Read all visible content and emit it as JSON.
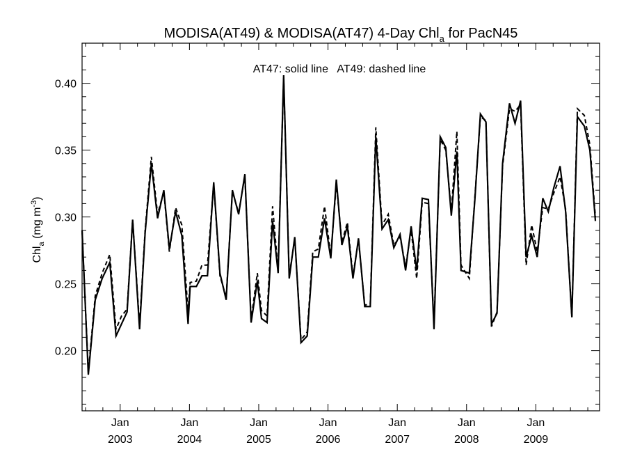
{
  "chart_data": {
    "type": "line",
    "title": {
      "main": "MODISA(AT49) & MODISA(AT47) 4-Day Chl",
      "sub": "a",
      "tail": " for PacN45"
    },
    "ylabel": {
      "main": "Chl",
      "sub": "a",
      "mid": " (mg m",
      "sup": "-3",
      "end": ")"
    },
    "annotation": "AT47: solid line   AT49: dashed line",
    "xlim": [
      2002.45,
      2009.92
    ],
    "ylim": [
      0.155,
      0.43
    ],
    "y_ticks": [
      0.2,
      0.25,
      0.3,
      0.35,
      0.4
    ],
    "y_tick_labels": [
      "0.20",
      "0.25",
      "0.30",
      "0.35",
      "0.40"
    ],
    "x_ticks": [
      {
        "x": 2003.0,
        "month": "Jan",
        "year": "2003"
      },
      {
        "x": 2004.0,
        "month": "Jan",
        "year": "2004"
      },
      {
        "x": 2005.0,
        "month": "Jan",
        "year": "2005"
      },
      {
        "x": 2006.0,
        "month": "Jan",
        "year": "2006"
      },
      {
        "x": 2007.0,
        "month": "Jan",
        "year": "2007"
      },
      {
        "x": 2008.0,
        "month": "Jan",
        "year": "2008"
      },
      {
        "x": 2009.0,
        "month": "Jan",
        "year": "2009"
      }
    ],
    "series": [
      {
        "name": "AT47",
        "style": "solid",
        "color": "#000000",
        "points": [
          [
            2002.45,
            0.29
          ],
          [
            2002.54,
            0.182
          ],
          [
            2002.64,
            0.238
          ],
          [
            2002.74,
            0.254
          ],
          [
            2002.85,
            0.266
          ],
          [
            2002.94,
            0.211
          ],
          [
            2003.02,
            0.22
          ],
          [
            2003.1,
            0.229
          ],
          [
            2003.18,
            0.298
          ],
          [
            2003.28,
            0.216
          ],
          [
            2003.36,
            0.288
          ],
          [
            2003.45,
            0.34
          ],
          [
            2003.54,
            0.299
          ],
          [
            2003.63,
            0.32
          ],
          [
            2003.71,
            0.276
          ],
          [
            2003.8,
            0.304
          ],
          [
            2003.89,
            0.286
          ],
          [
            2003.98,
            0.22
          ],
          [
            2004.01,
            0.248
          ],
          [
            2004.1,
            0.248
          ],
          [
            2004.18,
            0.256
          ],
          [
            2004.26,
            0.256
          ],
          [
            2004.35,
            0.326
          ],
          [
            2004.44,
            0.258
          ],
          [
            2004.53,
            0.238
          ],
          [
            2004.62,
            0.32
          ],
          [
            2004.71,
            0.302
          ],
          [
            2004.8,
            0.332
          ],
          [
            2004.89,
            0.221
          ],
          [
            2004.98,
            0.252
          ],
          [
            2005.04,
            0.224
          ],
          [
            2005.12,
            0.221
          ],
          [
            2005.2,
            0.297
          ],
          [
            2005.28,
            0.258
          ],
          [
            2005.36,
            0.406
          ],
          [
            2005.44,
            0.254
          ],
          [
            2005.52,
            0.285
          ],
          [
            2005.61,
            0.206
          ],
          [
            2005.7,
            0.211
          ],
          [
            2005.78,
            0.27
          ],
          [
            2005.86,
            0.27
          ],
          [
            2005.95,
            0.299
          ],
          [
            2006.04,
            0.269
          ],
          [
            2006.12,
            0.328
          ],
          [
            2006.2,
            0.279
          ],
          [
            2006.28,
            0.293
          ],
          [
            2006.36,
            0.254
          ],
          [
            2006.44,
            0.284
          ],
          [
            2006.53,
            0.233
          ],
          [
            2006.61,
            0.233
          ],
          [
            2006.69,
            0.36
          ],
          [
            2006.78,
            0.291
          ],
          [
            2006.87,
            0.298
          ],
          [
            2006.95,
            0.277
          ],
          [
            2007.04,
            0.287
          ],
          [
            2007.12,
            0.26
          ],
          [
            2007.2,
            0.293
          ],
          [
            2007.28,
            0.26
          ],
          [
            2007.36,
            0.314
          ],
          [
            2007.45,
            0.313
          ],
          [
            2007.53,
            0.216
          ],
          [
            2007.62,
            0.36
          ],
          [
            2007.7,
            0.352
          ],
          [
            2007.78,
            0.301
          ],
          [
            2007.86,
            0.349
          ],
          [
            2007.92,
            0.26
          ],
          [
            2008.04,
            0.258
          ],
          [
            2008.12,
            0.313
          ],
          [
            2008.2,
            0.377
          ],
          [
            2008.28,
            0.371
          ],
          [
            2008.36,
            0.22
          ],
          [
            2008.44,
            0.228
          ],
          [
            2008.52,
            0.34
          ],
          [
            2008.62,
            0.385
          ],
          [
            2008.7,
            0.37
          ],
          [
            2008.78,
            0.387
          ],
          [
            2008.86,
            0.27
          ],
          [
            2008.94,
            0.286
          ],
          [
            2009.02,
            0.27
          ],
          [
            2009.1,
            0.314
          ],
          [
            2009.18,
            0.304
          ],
          [
            2009.26,
            0.322
          ],
          [
            2009.35,
            0.338
          ],
          [
            2009.43,
            0.304
          ],
          [
            2009.52,
            0.225
          ],
          [
            2009.6,
            0.375
          ],
          [
            2009.7,
            0.368
          ],
          [
            2009.78,
            0.35
          ],
          [
            2009.86,
            0.297
          ]
        ]
      },
      {
        "name": "AT49",
        "style": "dashed",
        "color": "#000000",
        "points": [
          [
            2002.45,
            0.29
          ],
          [
            2002.54,
            0.184
          ],
          [
            2002.64,
            0.241
          ],
          [
            2002.74,
            0.258
          ],
          [
            2002.85,
            0.272
          ],
          [
            2002.94,
            0.216
          ],
          [
            2003.02,
            0.226
          ],
          [
            2003.1,
            0.231
          ],
          [
            2003.18,
            0.298
          ],
          [
            2003.28,
            0.219
          ],
          [
            2003.36,
            0.29
          ],
          [
            2003.45,
            0.345
          ],
          [
            2003.54,
            0.302
          ],
          [
            2003.63,
            0.319
          ],
          [
            2003.71,
            0.274
          ],
          [
            2003.8,
            0.307
          ],
          [
            2003.89,
            0.294
          ],
          [
            2003.98,
            0.229
          ],
          [
            2004.01,
            0.251
          ],
          [
            2004.1,
            0.252
          ],
          [
            2004.18,
            0.264
          ],
          [
            2004.26,
            0.264
          ],
          [
            2004.35,
            0.325
          ],
          [
            2004.44,
            0.256
          ],
          [
            2004.53,
            0.24
          ],
          [
            2004.62,
            0.319
          ],
          [
            2004.71,
            0.303
          ],
          [
            2004.8,
            0.331
          ],
          [
            2004.89,
            0.223
          ],
          [
            2004.98,
            0.258
          ],
          [
            2005.04,
            0.23
          ],
          [
            2005.12,
            0.226
          ],
          [
            2005.2,
            0.308
          ],
          [
            2005.28,
            0.26
          ],
          [
            2005.36,
            0.404
          ],
          [
            2005.44,
            0.256
          ],
          [
            2005.52,
            0.284
          ],
          [
            2005.61,
            0.208
          ],
          [
            2005.7,
            0.214
          ],
          [
            2005.78,
            0.274
          ],
          [
            2005.86,
            0.276
          ],
          [
            2005.95,
            0.308
          ],
          [
            2006.04,
            0.271
          ],
          [
            2006.12,
            0.325
          ],
          [
            2006.2,
            0.281
          ],
          [
            2006.28,
            0.296
          ],
          [
            2006.36,
            0.256
          ],
          [
            2006.44,
            0.283
          ],
          [
            2006.53,
            0.234
          ],
          [
            2006.61,
            0.235
          ],
          [
            2006.69,
            0.367
          ],
          [
            2006.78,
            0.294
          ],
          [
            2006.87,
            0.302
          ],
          [
            2006.95,
            0.279
          ],
          [
            2007.04,
            0.285
          ],
          [
            2007.12,
            0.263
          ],
          [
            2007.2,
            0.29
          ],
          [
            2007.28,
            0.254
          ],
          [
            2007.36,
            0.311
          ],
          [
            2007.45,
            0.31
          ],
          [
            2007.53,
            0.219
          ],
          [
            2007.62,
            0.358
          ],
          [
            2007.7,
            0.35
          ],
          [
            2007.78,
            0.304
          ],
          [
            2007.86,
            0.364
          ],
          [
            2007.92,
            0.264
          ],
          [
            2008.04,
            0.254
          ],
          [
            2008.12,
            0.315
          ],
          [
            2008.2,
            0.375
          ],
          [
            2008.28,
            0.372
          ],
          [
            2008.36,
            0.218
          ],
          [
            2008.44,
            0.229
          ],
          [
            2008.52,
            0.338
          ],
          [
            2008.62,
            0.381
          ],
          [
            2008.7,
            0.379
          ],
          [
            2008.78,
            0.384
          ],
          [
            2008.86,
            0.264
          ],
          [
            2008.94,
            0.294
          ],
          [
            2009.02,
            0.274
          ],
          [
            2009.1,
            0.307
          ],
          [
            2009.18,
            0.306
          ],
          [
            2009.26,
            0.318
          ],
          [
            2009.35,
            0.33
          ],
          [
            2009.43,
            0.306
          ],
          [
            2009.52,
            0.225
          ],
          [
            2009.6,
            0.381
          ],
          [
            2009.7,
            0.376
          ],
          [
            2009.78,
            0.354
          ],
          [
            2009.86,
            0.3
          ]
        ]
      }
    ]
  }
}
